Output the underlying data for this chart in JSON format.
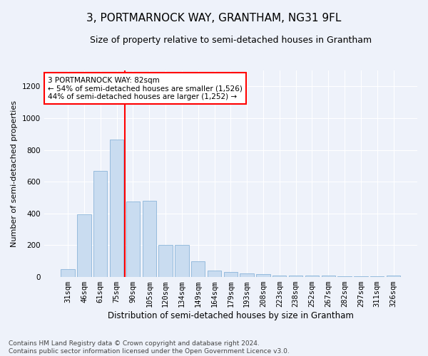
{
  "title": "3, PORTMARNOCK WAY, GRANTHAM, NG31 9FL",
  "subtitle": "Size of property relative to semi-detached houses in Grantham",
  "xlabel": "Distribution of semi-detached houses by size in Grantham",
  "ylabel": "Number of semi-detached properties",
  "categories": [
    "31sqm",
    "46sqm",
    "61sqm",
    "75sqm",
    "90sqm",
    "105sqm",
    "120sqm",
    "134sqm",
    "149sqm",
    "164sqm",
    "179sqm",
    "193sqm",
    "208sqm",
    "223sqm",
    "238sqm",
    "252sqm",
    "267sqm",
    "282sqm",
    "297sqm",
    "311sqm",
    "326sqm"
  ],
  "values": [
    50,
    395,
    670,
    865,
    475,
    480,
    200,
    200,
    100,
    40,
    30,
    25,
    20,
    10,
    10,
    10,
    10,
    5,
    5,
    5,
    10
  ],
  "bar_color": "#c9dcf0",
  "bar_edge_color": "#7aaad4",
  "vline_color": "red",
  "vline_x_index": 3,
  "annotation_text": "3 PORTMARNOCK WAY: 82sqm\n← 54% of semi-detached houses are smaller (1,526)\n44% of semi-detached houses are larger (1,252) →",
  "annotation_box_color": "white",
  "annotation_box_edge_color": "red",
  "ylim": [
    0,
    1300
  ],
  "yticks": [
    0,
    200,
    400,
    600,
    800,
    1000,
    1200
  ],
  "footnote": "Contains HM Land Registry data © Crown copyright and database right 2024.\nContains public sector information licensed under the Open Government Licence v3.0.",
  "background_color": "#eef2fa",
  "grid_color": "#ffffff",
  "title_fontsize": 11,
  "subtitle_fontsize": 9,
  "tick_fontsize": 7.5,
  "ylabel_fontsize": 8,
  "xlabel_fontsize": 8.5,
  "footnote_fontsize": 6.5,
  "annotation_fontsize": 7.5
}
